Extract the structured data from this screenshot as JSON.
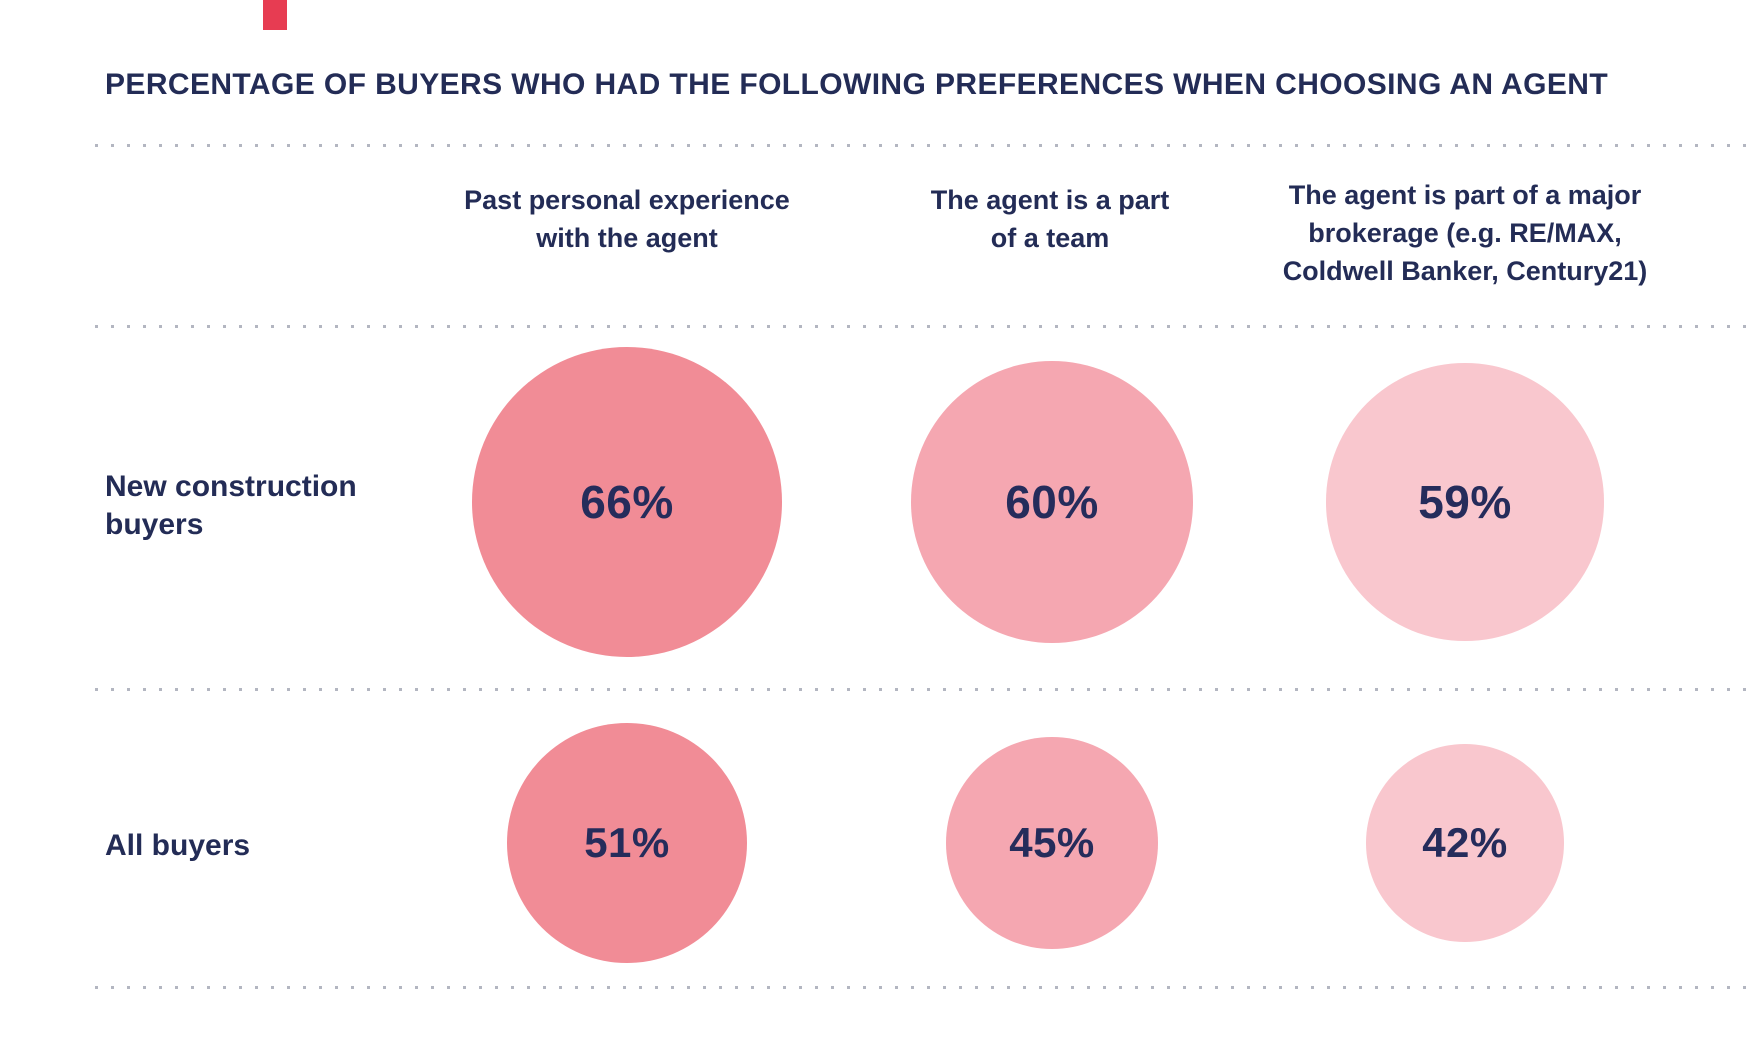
{
  "page": {
    "title": "PERCENTAGE OF BUYERS WHO HAD THE FOLLOWING PREFERENCES WHEN CHOOSING AN AGENT"
  },
  "columns": [
    {
      "label": "Past personal experience\nwith the agent"
    },
    {
      "label": "The agent is a part\nof a team"
    },
    {
      "label": "The agent is part of a major\nbrokerage (e.g. RE/MAX,\nColdwell Banker, Century21)"
    }
  ],
  "rows": [
    {
      "label": "New construction\nbuyers"
    },
    {
      "label": "All buyers"
    }
  ],
  "labels": {
    "r0c0": "66%",
    "r0c1": "60%",
    "r0c2": "59%",
    "r1c0": "51%",
    "r1c1": "45%",
    "r1c2": "42%"
  },
  "colors": {
    "accent_red": "#E73C52",
    "navy_text": "#232C56",
    "bubble_col1": "#F18C96",
    "bubble_col2": "#F5A7B1",
    "bubble_col3": "#F9C7CE",
    "dotted_line": "#B3B6C1",
    "background": "#FFFFFF"
  },
  "chart_data": {
    "type": "bubble",
    "title": "PERCENTAGE OF BUYERS WHO HAD THE FOLLOWING PREFERENCES WHEN CHOOSING AN AGENT",
    "categories": [
      "Past personal experience with the agent",
      "The agent is a part of a team",
      "The agent is part of a major brokerage (e.g. RE/MAX, Coldwell Banker, Century21)"
    ],
    "series": [
      {
        "name": "New construction buyers",
        "values": [
          66,
          60,
          59
        ]
      },
      {
        "name": "All buyers",
        "values": [
          51,
          45,
          42
        ]
      }
    ],
    "value_unit": "percent",
    "bubble_colors_by_column": [
      "#F18C96",
      "#F5A7B1",
      "#F9C7CE"
    ],
    "layout_hint": "2-row by 3-column matrix; bubble diameter proportional to value; bands separated by horizontal dotted lines; legend none"
  }
}
